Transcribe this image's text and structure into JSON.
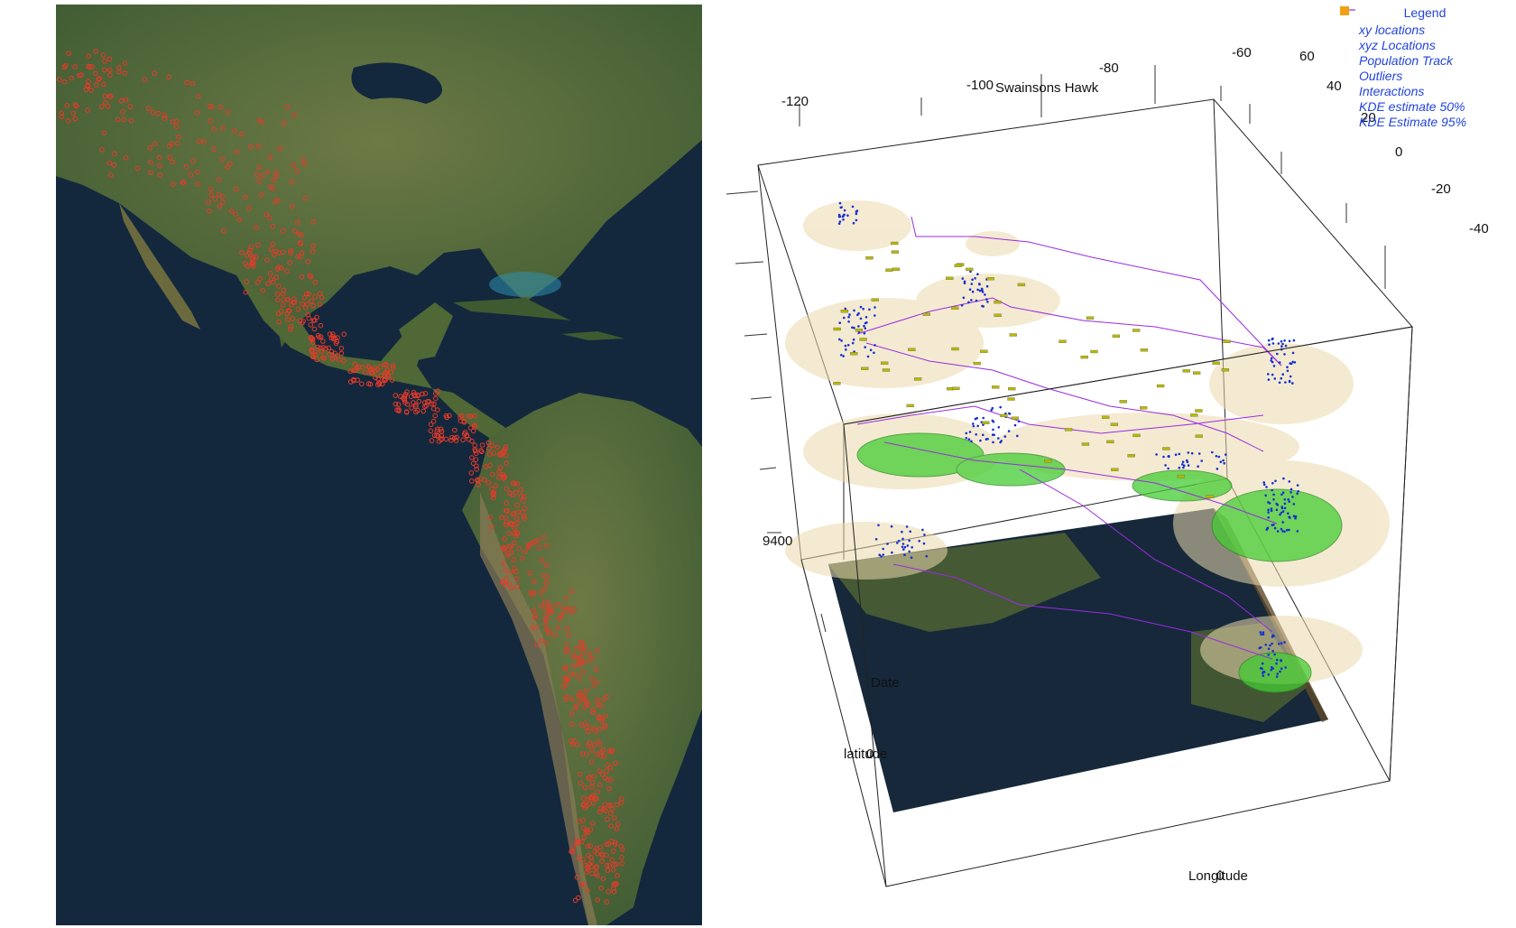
{
  "map": {
    "left_panel": "satellite-map-with-xy-locations"
  },
  "plot3d": {
    "title": "Swainsons Hawk",
    "top_ticks": [
      "-120",
      "-100",
      "-80",
      "-60"
    ],
    "right_ticks": [
      "60",
      "40",
      "20",
      "0",
      "-20",
      "-40"
    ],
    "z_tick": "9400",
    "axis_labels": {
      "date": "Date",
      "latitude": "latitude",
      "longitude": "Longitude",
      "overlap_zero_1": "0",
      "overlap_zero_2": "0"
    }
  },
  "legend": {
    "title": "Legend",
    "items": [
      {
        "label": "xy locations",
        "icon": "open-circle-icon",
        "color": "#e83a2a"
      },
      {
        "label": "xyz Locations",
        "icon": "dot-icon",
        "color": "#1530d0"
      },
      {
        "label": "Population Track",
        "icon": "line-icon",
        "color": "#9a2be2"
      },
      {
        "label": "Outliers",
        "icon": "square-icon",
        "color": "#f2f200"
      },
      {
        "label": "Interactions",
        "icon": "circle-icon",
        "color": "#e8201a"
      },
      {
        "label": "KDE estimate 50%",
        "icon": "square-icon",
        "color": "#22dd22"
      },
      {
        "label": "KDE Estimate 95%",
        "icon": "square-icon",
        "color": "#f0a010"
      }
    ]
  },
  "colors": {
    "ocean": "#13283d",
    "land": "#4e6a3a",
    "points": "#e83a2a",
    "kde50": "#44cc33",
    "kde95": "#ecd9ad",
    "track": "#9a2be2",
    "xyz": "#1530d0",
    "outlier": "#b8b800"
  }
}
